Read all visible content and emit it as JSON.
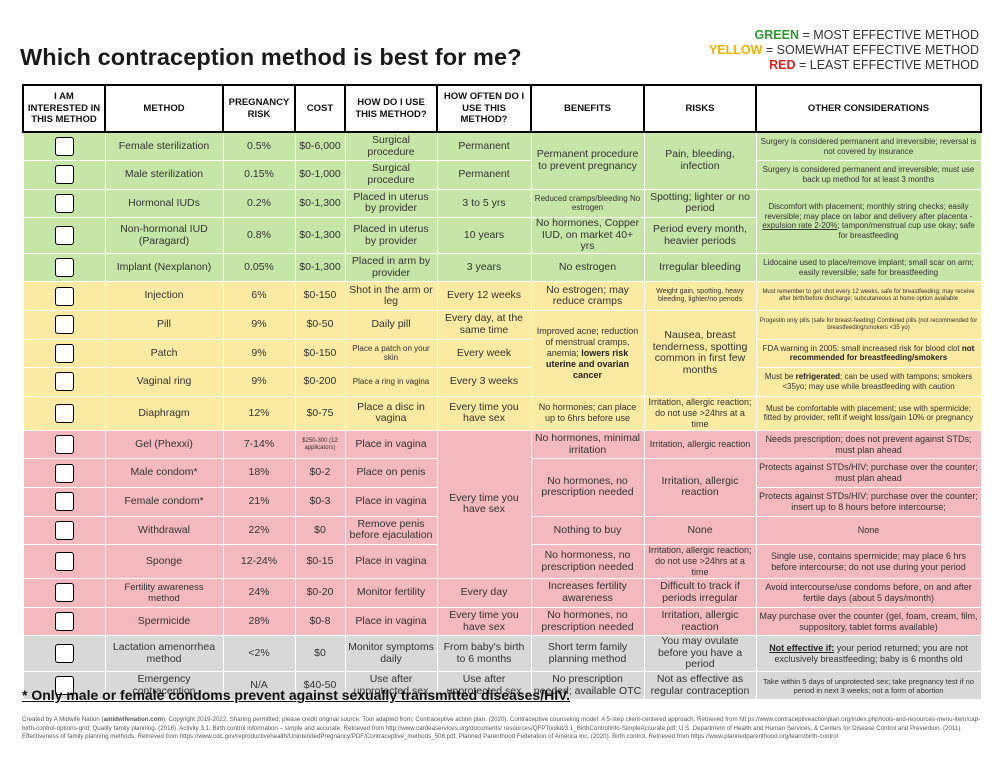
{
  "title": "Which contraception method is best for me?",
  "legend": [
    {
      "key": "GREEN",
      "text": " = MOST EFFECTIVE METHOD",
      "color": "#2e9a2e"
    },
    {
      "key": "YELLOW",
      "text": " = SOMEWHAT EFFECTIVE METHOD",
      "color": "#e9b400"
    },
    {
      "key": "RED",
      "text": " = LEAST EFFECTIVE METHOD",
      "color": "#e02020"
    }
  ],
  "headers": [
    "I am interested in this method",
    "Method",
    "Pregnancy risk",
    "Cost",
    "How do I use this method?",
    "How often do I use this method?",
    "Benefits",
    "Risks",
    "Other considerations"
  ],
  "rows": [
    {
      "method": "Female sterilization",
      "risk": "0.5%",
      "cost": "$0-6,000",
      "use": "Surgical procedure",
      "often": "Permanent",
      "benefits": "Permanent procedure to prevent pregnancy",
      "risks": "Pain, bleeding, infection",
      "other": "Surgery is considered permanent and irreversible; reversal is not covered by insurance"
    },
    {
      "method": "Male sterilization",
      "risk": "0.15%",
      "cost": "$0-1,000",
      "use": "Surgical procedure",
      "often": "Permanent",
      "other": "Surgery is considered permanent and irreversible; must use back up method for at least 3 months"
    },
    {
      "method": "Hormonal IUDs",
      "risk": "0.2%",
      "cost": "$0-1,300",
      "use": "Placed in uterus by provider",
      "often": "3 to 5 yrs",
      "benefits": "Reduced cramps/bleeding No estrogen",
      "risks": "Spotting; lighter or no period",
      "other_parts": [
        "Discomfort with placement; monthly string checks; easily reversible; may place on labor and delivery after placenta - ",
        "expulsion rate 2-20%",
        "; tampon/menstrual cup use okay; safe for breastfeeding"
      ]
    },
    {
      "method": "Non-hormonal IUD (Paragard)",
      "risk": "0.8%",
      "cost": "$0-1,300",
      "use": "Placed in uterus by provider",
      "often": "10 years",
      "benefits": "No hormones, Copper IUD, on market 40+ yrs",
      "risks": "Period every month, heavier periods"
    },
    {
      "method": "Implant (Nexplanon)",
      "risk": "0.05%",
      "cost": "$0-1,300",
      "use": "Placed in arm by provider",
      "often": "3 years",
      "benefits": "No estrogen",
      "risks": "Irregular bleeding",
      "other": "Lidocaine used to place/remove implant; small scar on arm; easily reversible; safe for breastfeeding"
    },
    {
      "method": "Injection",
      "risk": "6%",
      "cost": "$0-150",
      "use": "Shot in the arm or leg",
      "often": "Every 12 weeks",
      "benefits": "No estrogen; may reduce cramps",
      "risks": "Weight gain, spotting, heavy bleeding, lighter/no periods",
      "other": "Must remember to get shot every 12 weeks, safe for breastfeeding; may receive after birth/before discharge; subcutaneous at home option available"
    },
    {
      "method": "Pill",
      "risk": "9%",
      "cost": "$0-50",
      "use": "Daily pill",
      "often": "Every day, at the same time",
      "benefits_parts": [
        "Improved acne; reduction of menstrual cramps, anemia; ",
        "lowers risk uterine and ovarian cancer"
      ],
      "risks": "Nausea, breast tenderness, spotting common in first few months",
      "other": "Progestin only pills (safe for breast-feeding) Combined pills (not recommended for breastfeeding/smokers <35 yo)"
    },
    {
      "method": "Patch",
      "risk": "9%",
      "cost": "$0-150",
      "use": "Place a patch on your skin",
      "often": "Every week",
      "other_parts": [
        "FDA warning in 2005: small increased risk for blood clot ",
        "not recommended for breastfeeding/smokers"
      ]
    },
    {
      "method": "Vaginal ring",
      "risk": "9%",
      "cost": "$0-200",
      "use": "Place a ring in vagina",
      "often": "Every 3 weeks",
      "other_parts": [
        "Must be ",
        "refrigerated",
        "; can be used with tampons; smokers <35yo; may use while breastfeeding with caution"
      ]
    },
    {
      "method": "Diaphragm",
      "risk": "12%",
      "cost": "$0-75",
      "use": "Place a disc in vagina",
      "often": "Every time you have sex",
      "benefits": "No hormones; can place up to 6hrs before use",
      "risks": "Irritation, allergic reaction; do not use >24hrs at a time",
      "other": "Must be comfortable with placement; use with spermicide; fitted by provider; refit if weight loss/gain 10% or pregnancy"
    },
    {
      "method": "Gel (Phexxi)",
      "risk": "7-14%",
      "cost": "$250-300 (12 applicators)",
      "use": "Place in vagina",
      "often": "Every time you have sex",
      "benefits": "No hormones, minimal irritation",
      "risks": "Irritation, allergic reaction",
      "other": "Needs prescription; does not prevent against STDs; must plan ahead"
    },
    {
      "method": "Male condom*",
      "risk": "18%",
      "cost": "$0-2",
      "use": "Place on penis",
      "benefits": "No hormones, no prescription needed",
      "risks": "Irritation, allergic reaction",
      "other": "Protects against STDs/HIV; purchase over the counter; must plan ahead"
    },
    {
      "method": "Female condom*",
      "risk": "21%",
      "cost": "$0-3",
      "use": "Place in vagina",
      "other": "Protects against STDs/HIV; purchase over the counter; insert up to 8 hours before intercourse;"
    },
    {
      "method": "Withdrawal",
      "risk": "22%",
      "cost": "$0",
      "use": "Remove penis before ejaculation",
      "benefits": "Nothing to buy",
      "risks": "None",
      "other": "None"
    },
    {
      "method": "Sponge",
      "risk": "12-24%",
      "cost": "$0-15",
      "use": "Place in vagina",
      "benefits": "No hormoness, no prescription needed",
      "risks": "Irritation, allergic reaction; do not use >24hrs at a time",
      "other": "Single use, contains spermicide; may place 6 hrs before intercourse; do not use during your period"
    },
    {
      "method": "Fertility awareness method",
      "risk": "24%",
      "cost": "$0-20",
      "use": "Monitor fertility",
      "often": "Every day",
      "benefits": "Increases fertility awareness",
      "risks": "Difficult to track if periods irregular",
      "other": "Avoid intercourse/use condoms before, on and after fertile days (about 5 days/month)"
    },
    {
      "method": "Spermicide",
      "risk": "28%",
      "cost": "$0-8",
      "use": "Place in vagina",
      "often": "Every time you have sex",
      "benefits": "No hormones, no prescription needed",
      "risks": "Irritation, allergic reaction",
      "other": "May purchase over the counter (gel, foam, cream, film, suppository, tablet forms available)"
    },
    {
      "method": "Lactation amenorrhea method",
      "risk": "<2%",
      "cost": "$0",
      "use": "Monitor symptoms daily",
      "often": "From baby's birth to 6 months",
      "benefits": "Short term family planning method",
      "risks": "You may ovulate before you have a period",
      "other_parts": [
        "Not effective if:",
        " your period returned; you are not exclusively breastfeeding; baby is 6 months old"
      ]
    },
    {
      "method": "Emergency contraception",
      "risk": "N/A",
      "cost": "$40-50",
      "use": "Use after unprotected sex",
      "often": "Use after unprotected sex",
      "benefits": "No prescription needed; available OTC",
      "risks": "Not as effective as regular contraception",
      "other": "Take within 5 days of unprotected sex; take pregnancy test if no period in next 3 weeks; not a form of abortion"
    }
  ],
  "footnote": "* Only male or female condoms prevent against sexually transmitted diseases/HIV.",
  "credits_parts": [
    "Created by A Midwife Nation (",
    "amidwifenation.com",
    "). Copyright 2019-2022. Sharing permitted; please credit original source. Tool adapted from: Contraceptive action plan. (2020). Contraceptive counseling model: A 5-step client-centered approach. Retrieved from htt ps://www.contraceptiveactionplan.org/index.php/tools-and-resources-menu-item/cap-birth-control-options-grid; Quality family planning. (2016). Activity 3.1: Birth control information – simple and accurate. Retrieved from http://www.cardeaservices.org/documents/ resources/QFPToolkit/3.1_BirthControlInfo-SimpleAccurate.pdf; U.S. Department of Health and Human Services, & Centers for Disease Control and Prevention. (2011). Effectiveness of family planning methods. Retrieved from https://www.cdc.gov/reproductivehealth/UnintendedPregnancy/PDF/Contraceptive_methods_508.pdf; Planned Parenthood Federation of America Inc. (2020). Birth control. Retrieved from https://www.plannedparenthood.org/learn/birth-control"
  ]
}
